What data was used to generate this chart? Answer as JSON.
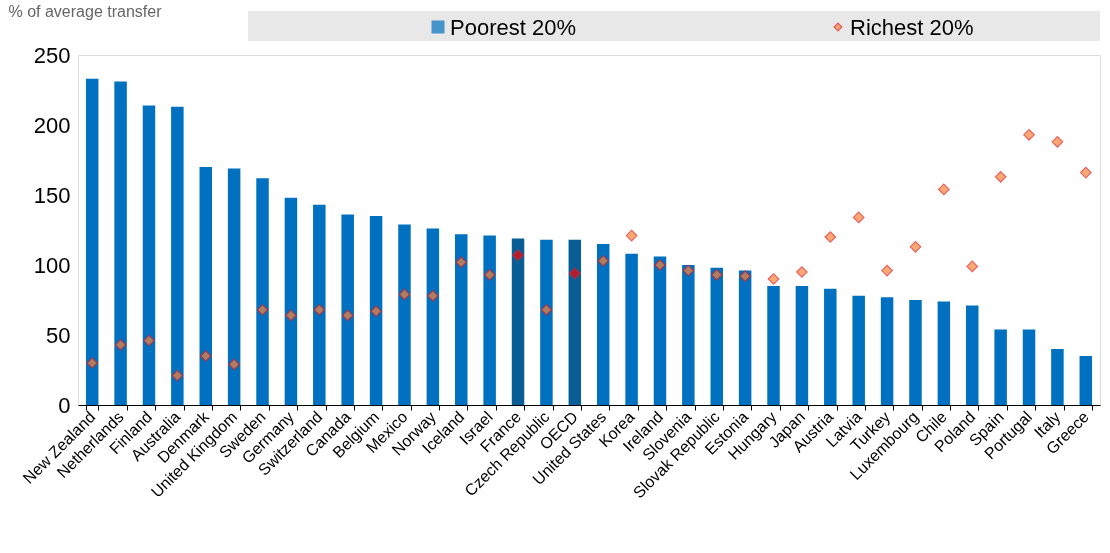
{
  "chart_data": {
    "type": "bar",
    "ylabel": "% of average transfer",
    "categories": [
      "New Zealand",
      "Netherlands",
      "Finland",
      "Australia",
      "Denmark",
      "United Kingdom",
      "Sweden",
      "Germany",
      "Switzerland",
      "Canada",
      "Belgium",
      "Mexico",
      "Norway",
      "Iceland",
      "Israel",
      "France",
      "Czech Republic",
      "OECD",
      "United States",
      "Korea",
      "Ireland",
      "Slovenia",
      "Slovak Republic",
      "Estonia",
      "Hungary",
      "Japan",
      "Austria",
      "Latvia",
      "Turkey",
      "Luxembourg",
      "Chile",
      "Poland",
      "Spain",
      "Portugal",
      "Italy",
      "Greece"
    ],
    "series": [
      {
        "name": "Poorest 20%",
        "color": "#0070c0",
        "colors": [
          "#0070c0",
          "#0070c0",
          "#0070c0",
          "#0070c0",
          "#0070c0",
          "#0070c0",
          "#0070c0",
          "#0070c0",
          "#0070c0",
          "#0070c0",
          "#0070c0",
          "#0070c0",
          "#0070c0",
          "#0070c0",
          "#0070c0",
          "#0a5e98",
          "#0070c0",
          "#0a5e98",
          "#0070c0",
          "#0070c0",
          "#0070c0",
          "#0070c0",
          "#0070c0",
          "#0070c0",
          "#0070c0",
          "#0070c0",
          "#0070c0",
          "#0070c0",
          "#0070c0",
          "#0070c0",
          "#0070c0",
          "#0070c0",
          "#0070c0",
          "#0070c0",
          "#0070c0",
          "#0070c0"
        ],
        "values": [
          233,
          231,
          214,
          213,
          170,
          169,
          162,
          148,
          143,
          136,
          135,
          129,
          126,
          122,
          121,
          119,
          118,
          118,
          115,
          108,
          106,
          100,
          98,
          96,
          85,
          85,
          83,
          78,
          77,
          75,
          74,
          71,
          54,
          54,
          40,
          35
        ]
      },
      {
        "name": "Richest 20%",
        "type": "scatter",
        "marker": "diamond",
        "color": "#f7853a",
        "colors": [
          "#f7853a",
          "#f7853a",
          "#f7853a",
          "#f7853a",
          "#f7853a",
          "#f7853a",
          "#f7853a",
          "#f7853a",
          "#f7853a",
          "#f7853a",
          "#f7853a",
          "#f7853a",
          "#f7853a",
          "#f7853a",
          "#f7853a",
          "#ff0000",
          "#f7853a",
          "#ff0000",
          "#f7853a",
          "#f7853a",
          "#f7853a",
          "#f7853a",
          "#f7853a",
          "#f7853a",
          "#f7853a",
          "#f7853a",
          "#f7853a",
          "#f7853a",
          "#f7853a",
          "#f7853a",
          "#f7853a",
          "#f7853a",
          "#f7853a",
          "#f7853a",
          "#f7853a",
          "#f7853a"
        ],
        "values": [
          30,
          43,
          46,
          21,
          35,
          29,
          68,
          64,
          68,
          64,
          67,
          79,
          78,
          102,
          93,
          107,
          68,
          94,
          103,
          121,
          100,
          96,
          93,
          92,
          90,
          95,
          120,
          134,
          96,
          113,
          154,
          99,
          163,
          193,
          188,
          166
        ]
      }
    ],
    "ylim": [
      0,
      250
    ],
    "yticks": [
      0,
      50,
      100,
      150,
      200,
      250
    ],
    "grid": false,
    "legend": "top"
  }
}
